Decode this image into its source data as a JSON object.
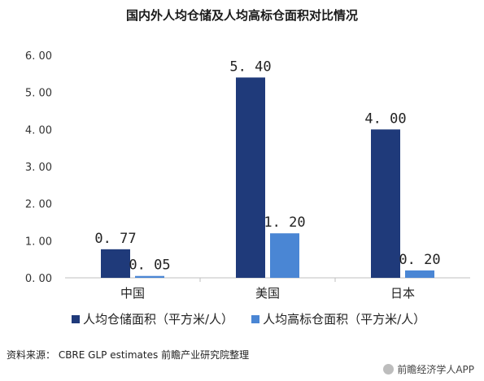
{
  "chart_data": {
    "type": "bar",
    "title": "国内外人均仓储及人均高标仓面积对比情况",
    "categories": [
      "中国",
      "美国",
      "日本"
    ],
    "series": [
      {
        "name": "人均仓储面积（平方米/人）",
        "values": [
          0.77,
          5.4,
          4.0
        ],
        "labels": [
          "0. 77",
          "5. 40",
          "4. 00"
        ],
        "color": "#1f3a7a"
      },
      {
        "name": "人均高标仓面积（平方米/人）",
        "values": [
          0.05,
          1.2,
          0.2
        ],
        "labels": [
          "0. 05",
          "1. 20",
          "0. 20"
        ],
        "color": "#4a86d4"
      }
    ],
    "yticks": [
      "0. 00",
      "1. 00",
      "2. 00",
      "3. 00",
      "4. 00",
      "5. 00",
      "6. 00"
    ],
    "ylim": [
      0,
      6
    ],
    "grid": false,
    "legend": "bottom"
  },
  "footer": {
    "source": "资料来源： CBRE GLP estimates 前瞻产业研究院整理",
    "watermark": "前瞻经济学人APP"
  }
}
